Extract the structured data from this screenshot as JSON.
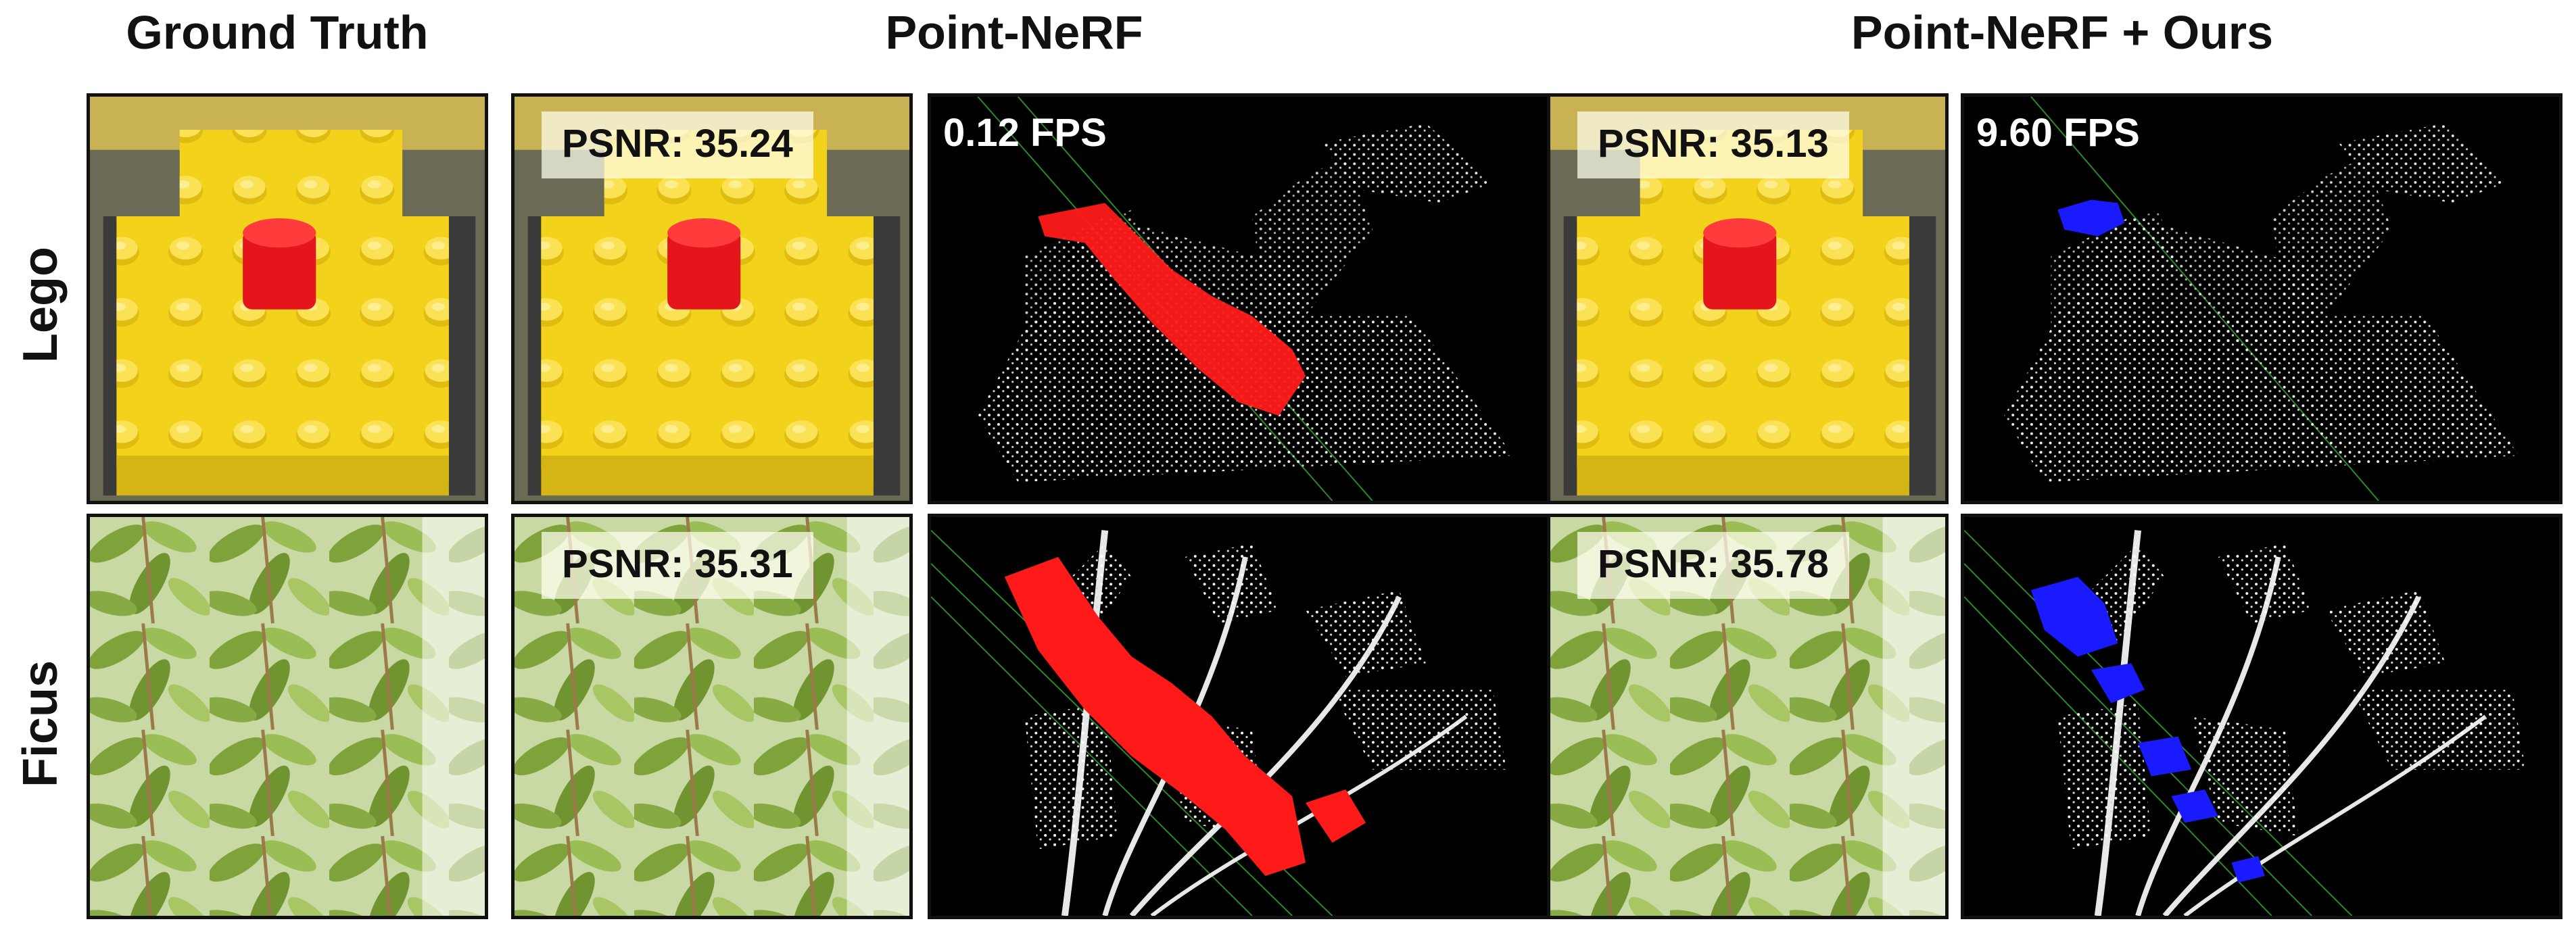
{
  "headers": {
    "ground_truth": "Ground Truth",
    "point_nerf": "Point-NeRF",
    "point_nerf_ours": "Point-NeRF + Ours"
  },
  "rows": {
    "lego": "Lego",
    "ficus": "Ficus"
  },
  "panels": {
    "lego_point_nerf_psnr": "PSNR: 35.24",
    "lego_point_nerf_fps": "0.12 FPS",
    "lego_ours_psnr": "PSNR: 35.13",
    "lego_ours_fps": "9.60 FPS",
    "ficus_point_nerf_psnr": "PSNR: 35.31",
    "ficus_ours_psnr": "PSNR: 35.78"
  },
  "colors": {
    "highlight_point_nerf": "#ff1a1a",
    "highlight_ours": "#1a1aff",
    "point_cloud": "#e8e8e8",
    "lego_yellow": "#f2d21b",
    "leaf_green": "#8fb04a"
  }
}
